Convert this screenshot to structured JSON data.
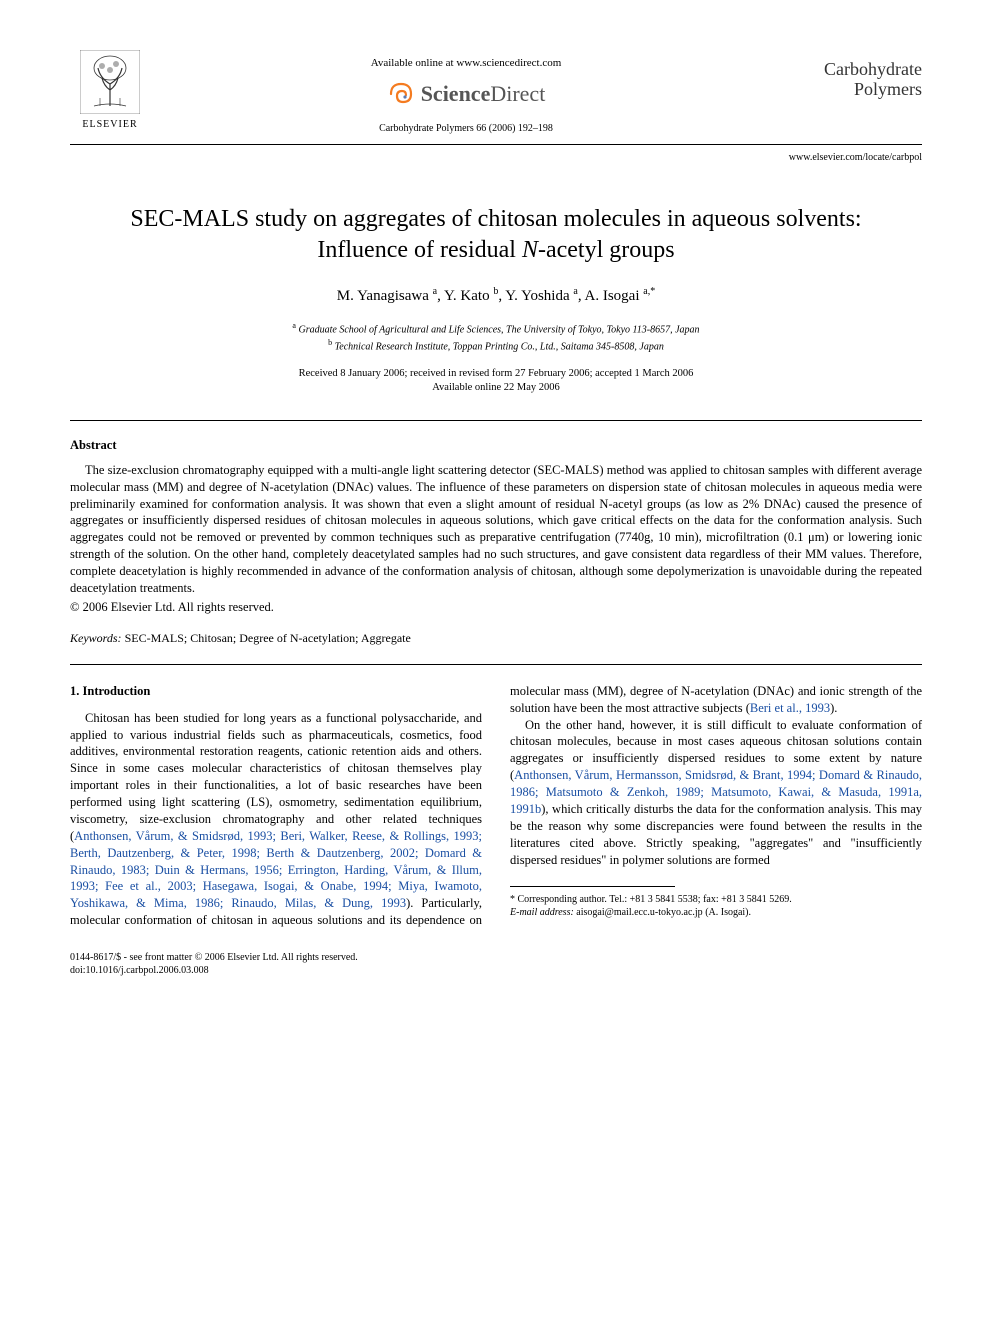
{
  "header": {
    "available_online": "Available online at www.sciencedirect.com",
    "sciencedirect": "ScienceDirect",
    "journal_ref": "Carbohydrate Polymers 66 (2006) 192–198",
    "publisher_name": "ELSEVIER",
    "journal_name_line1": "Carbohydrate",
    "journal_name_line2": "Polymers",
    "locate_url": "www.elsevier.com/locate/carbpol"
  },
  "article": {
    "title": "SEC-MALS study on aggregates of chitosan molecules in aqueous solvents: Influence of residual N-acetyl groups",
    "title_html": "SEC-MALS study on aggregates of chitosan molecules in aqueous solvents: Influence of residual <i>N</i>-acetyl groups",
    "authors_html": "M. Yanagisawa <sup>a</sup>, Y. Kato <sup>b</sup>, Y. Yoshida <sup>a</sup>, A. Isogai <sup>a,*</sup>",
    "affiliations": [
      {
        "sup": "a",
        "text": "Graduate School of Agricultural and Life Sciences, The University of Tokyo, Tokyo 113-8657, Japan"
      },
      {
        "sup": "b",
        "text": "Technical Research Institute, Toppan Printing Co., Ltd., Saitama 345-8508, Japan"
      }
    ],
    "dates_line1": "Received 8 January 2006; received in revised form 27 February 2006; accepted 1 March 2006",
    "dates_line2": "Available online 22 May 2006"
  },
  "abstract": {
    "heading": "Abstract",
    "text": "The size-exclusion chromatography equipped with a multi-angle light scattering detector (SEC-MALS) method was applied to chitosan samples with different average molecular mass (MM) and degree of N-acetylation (DNAc) values. The influence of these parameters on dispersion state of chitosan molecules in aqueous media were preliminarily examined for conformation analysis. It was shown that even a slight amount of residual N-acetyl groups (as low as 2% DNAc) caused the presence of aggregates or insufficiently dispersed residues of chitosan molecules in aqueous solutions, which gave critical effects on the data for the conformation analysis. Such aggregates could not be removed or prevented by common techniques such as preparative centrifugation (7740g, 10 min), microfiltration (0.1 μm) or lowering ionic strength of the solution. On the other hand, completely deacetylated samples had no such structures, and gave consistent data regardless of their MM values. Therefore, complete deacetylation is highly recommended in advance of the conformation analysis of chitosan, although some depolymerization is unavoidable during the repeated deacetylation treatments.",
    "copyright": "© 2006 Elsevier Ltd. All rights reserved.",
    "keywords_label": "Keywords:",
    "keywords": "SEC-MALS; Chitosan; Degree of N-acetylation; Aggregate"
  },
  "body": {
    "section_heading": "1. Introduction",
    "para1_pre": "Chitosan has been studied for long years as a functional polysaccharide, and applied to various industrial fields such as pharmaceuticals, cosmetics, food additives, environmental restoration reagents, cationic retention aids and others. Since in some cases molecular characteristics of chitosan themselves play important roles in their functionalities, a lot of basic researches have been performed using light scattering (LS), osmometry, sedimentation equilibrium, viscometry, size-exclusion chromatography and other related techniques (",
    "para1_refs": "Anthonsen, Vårum, & Smidsrød, 1993; Beri, Walker, Reese, & Rollings, 1993; Berth, Dautzenberg, & Peter, 1998; Berth & Dautzenberg, 2002; Domard & Rinaudo, 1983; Duin & Hermans, 1956; Errington, Harding, Vårum, & Illum, 1993; Fee et al.,",
    "para1_refs_cont": "2003; Hasegawa, Isogai, & Onabe, 1994; Miya, Iwamoto, Yoshikawa, & Mima, 1986; Rinaudo, Milas, & Dung, 1993",
    "para1_post": "). Particularly, molecular conformation of chitosan in aqueous solutions and its dependence on molecular mass (MM), degree of N-acetylation (DNAc) and ionic strength of the solution have been the most attractive subjects (",
    "para1_ref2": "Beri et al., 1993",
    "para1_close": ").",
    "para2_pre": "On the other hand, however, it is still difficult to evaluate conformation of chitosan molecules, because in most cases aqueous chitosan solutions contain aggregates or insufficiently dispersed residues to some extent by nature (",
    "para2_refs": "Anthonsen, Vårum, Hermansson, Smidsrød, & Brant, 1994; Domard & Rinaudo, 1986; Matsumoto & Zenkoh, 1989; Matsumoto, Kawai, & Masuda, 1991a, 1991b",
    "para2_post": "), which critically disturbs the data for the conformation analysis. This may be the reason why some discrepancies were found between the results in the literatures cited above. Strictly speaking, \"aggregates\" and \"insufficiently dispersed residues\" in polymer solutions are formed"
  },
  "footnote": {
    "corr_label": "* Corresponding author. Tel.: +81 3 5841 5538; fax: +81 3 5841 5269.",
    "email_label": "E-mail address:",
    "email": "aisogai@mail.ecc.u-tokyo.ac.jp",
    "email_person": "(A. Isogai)."
  },
  "footer": {
    "line1": "0144-8617/$ - see front matter © 2006 Elsevier Ltd. All rights reserved.",
    "doi": "doi:10.1016/j.carbpol.2006.03.008"
  },
  "colors": {
    "link": "#1a4fa3",
    "text": "#000000",
    "bg": "#ffffff",
    "sd_logo": "#f47b20"
  }
}
